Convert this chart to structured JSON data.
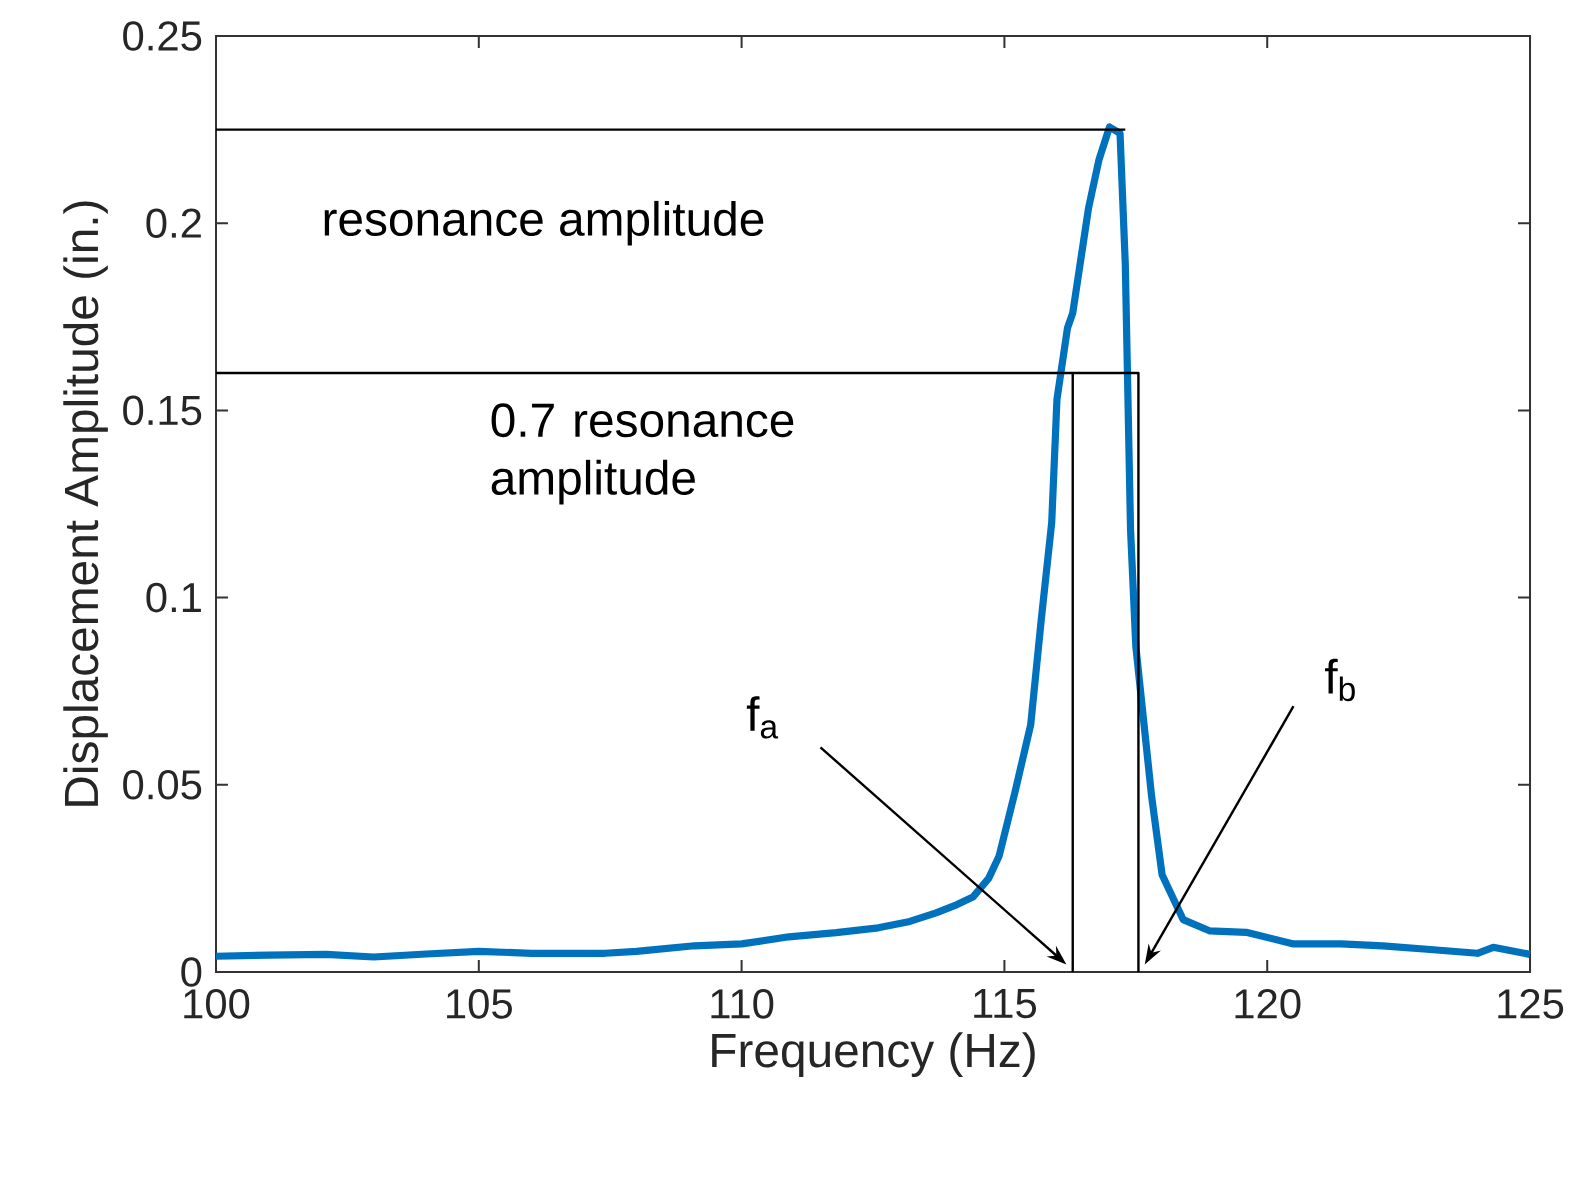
{
  "chart_data": {
    "type": "line",
    "xlabel": "Frequency (Hz)",
    "ylabel": "Displacement Amplitude (in.)",
    "xlim": [
      100,
      125
    ],
    "ylim": [
      0,
      0.25
    ],
    "xticks": [
      100,
      105,
      110,
      115,
      120,
      125
    ],
    "yticks": [
      0,
      0.05,
      0.1,
      0.15,
      0.2,
      0.25
    ],
    "line_style": "solid",
    "series": [
      {
        "color": "#0072bd",
        "x": [
          100,
          101,
          102.1,
          103,
          104,
          105,
          106,
          107.4,
          108,
          109.1,
          110,
          110.9,
          111.8,
          112.6,
          113.2,
          113.7,
          114.1,
          114.4,
          114.7,
          114.9,
          115.2,
          115.5,
          115.7,
          115.9,
          116.0,
          116.2,
          116.3,
          116.6,
          116.8,
          117.0,
          117.2,
          117.3,
          117.4,
          117.5,
          117.8,
          118.0,
          118.4,
          118.9,
          119.6,
          120.5,
          121.4,
          122.2,
          123.1,
          124.0,
          124.3,
          125
        ],
        "values": [
          0.0042,
          0.0045,
          0.0047,
          0.004,
          0.0048,
          0.0055,
          0.005,
          0.005,
          0.0055,
          0.007,
          0.0075,
          0.0094,
          0.0105,
          0.0118,
          0.0135,
          0.0158,
          0.018,
          0.02,
          0.025,
          0.031,
          0.048,
          0.066,
          0.094,
          0.12,
          0.153,
          0.172,
          0.176,
          0.204,
          0.217,
          0.2257,
          0.224,
          0.189,
          0.118,
          0.087,
          0.047,
          0.026,
          0.014,
          0.011,
          0.0106,
          0.0075,
          0.0075,
          0.007,
          0.006,
          0.005,
          0.0066,
          0.0047
        ]
      },
      {
        "color": "#000000",
        "type": "line",
        "x": [
          100,
          117.3
        ],
        "values": [
          0.225,
          0.225
        ]
      },
      {
        "color": "#000000",
        "type": "line",
        "x": [
          100,
          117.55,
          117.55
        ],
        "values": [
          0.16,
          0.16,
          0
        ]
      },
      {
        "color": "#000000",
        "type": "line",
        "x": [
          116.3,
          116.3
        ],
        "values": [
          0,
          0.16
        ]
      }
    ],
    "annotations": [
      "resonance amplitude",
      "0.7 resonance amplitude",
      "f$_{a}$",
      "f$_{b}$"
    ]
  }
}
